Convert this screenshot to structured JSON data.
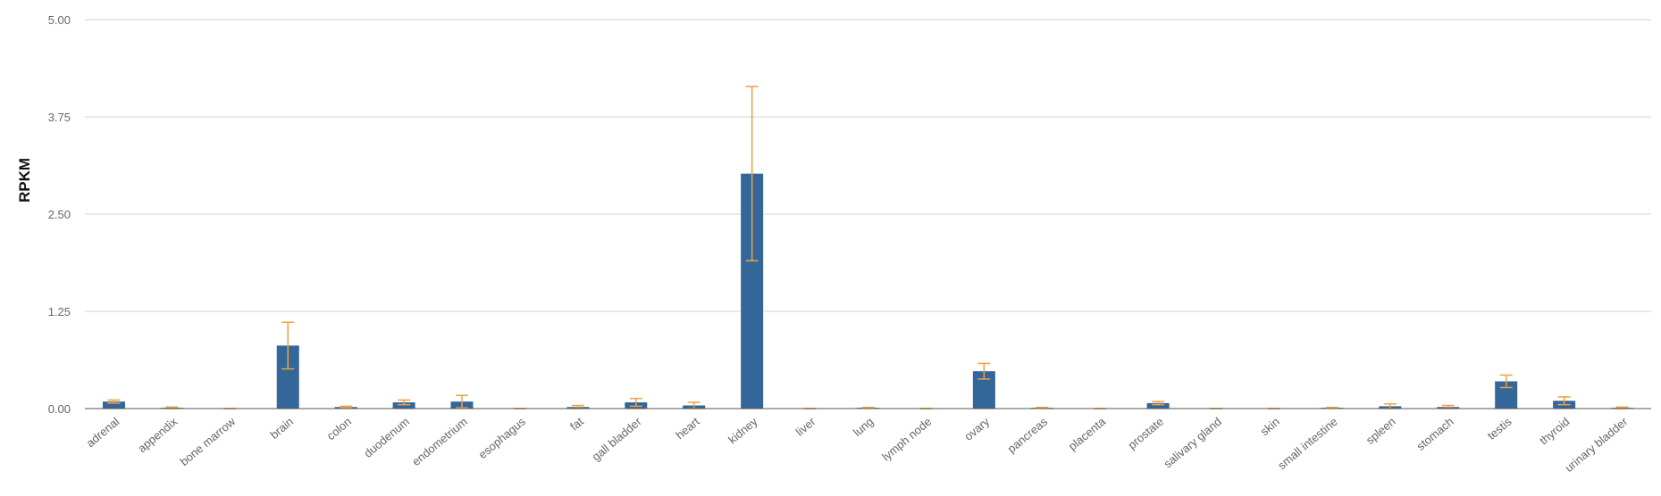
{
  "chart_data": {
    "type": "bar",
    "ylabel": "RPKM",
    "xlabel": "",
    "title": "",
    "ylim": [
      0,
      5
    ],
    "yticks": [
      "0.00",
      "1.25",
      "2.50",
      "3.75",
      "5.00"
    ],
    "ytick_values": [
      0,
      1.25,
      2.5,
      3.75,
      5
    ],
    "grid": true,
    "legend": "none",
    "colors": {
      "bar": "#336699",
      "error": "#f0a040"
    },
    "categories": [
      "adrenal",
      "appendix",
      "bone marrow",
      "brain",
      "colon",
      "duodenum",
      "endometrium",
      "esophagus",
      "fat",
      "gall bladder",
      "heart",
      "kidney",
      "liver",
      "lung",
      "lymph node",
      "ovary",
      "pancreas",
      "placenta",
      "prostate",
      "salivary gland",
      "skin",
      "small intestine",
      "spleen",
      "stomach",
      "testis",
      "thyroid",
      "urinary bladder"
    ],
    "values": [
      0.09,
      0.01,
      0.0,
      0.81,
      0.02,
      0.08,
      0.09,
      0.0,
      0.02,
      0.08,
      0.04,
      3.02,
      0.0,
      0.01,
      0.0,
      0.48,
      0.01,
      0.0,
      0.07,
      0.0,
      0.0,
      0.01,
      0.03,
      0.02,
      0.35,
      0.1,
      0.01
    ],
    "error": [
      0.02,
      0.01,
      0.0,
      0.3,
      0.01,
      0.03,
      0.08,
      0.0,
      0.02,
      0.05,
      0.04,
      1.12,
      0.0,
      0.005,
      0.0,
      0.1,
      0.005,
      0.0,
      0.02,
      0.0,
      0.0,
      0.005,
      0.03,
      0.02,
      0.08,
      0.05,
      0.01
    ]
  }
}
